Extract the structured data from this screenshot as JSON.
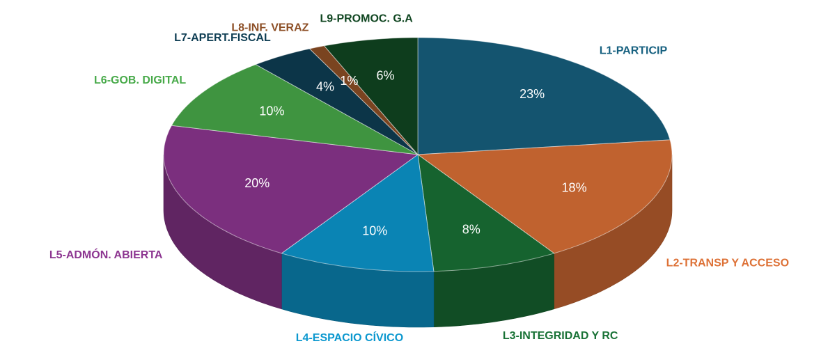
{
  "chart_data": {
    "type": "pie",
    "categories": [
      "L1-PARTICIP",
      "L2-TRANSP Y ACCESO",
      "L3-INTEGRIDAD Y RC",
      "L4-ESPACIO CÍVICO",
      "L5-ADMÓN. ABIERTA",
      "L6-GOB. DIGITAL",
      "L7-APERT.FISCAL",
      "L8-INF. VERAZ",
      "L9-PROMOC. G.A"
    ],
    "values": [
      23,
      18,
      8,
      10,
      20,
      10,
      4,
      1,
      6
    ],
    "value_labels": [
      "23%",
      "18%",
      "8%",
      "10%",
      "20%",
      "10%",
      "4%",
      "1%",
      "6%"
    ],
    "colors": [
      "#14546f",
      "#c0622f",
      "#16632f",
      "#0a84b4",
      "#7b2f7e",
      "#3f9440",
      "#0c3548",
      "#7a4420",
      "#0e3d1d"
    ]
  }
}
